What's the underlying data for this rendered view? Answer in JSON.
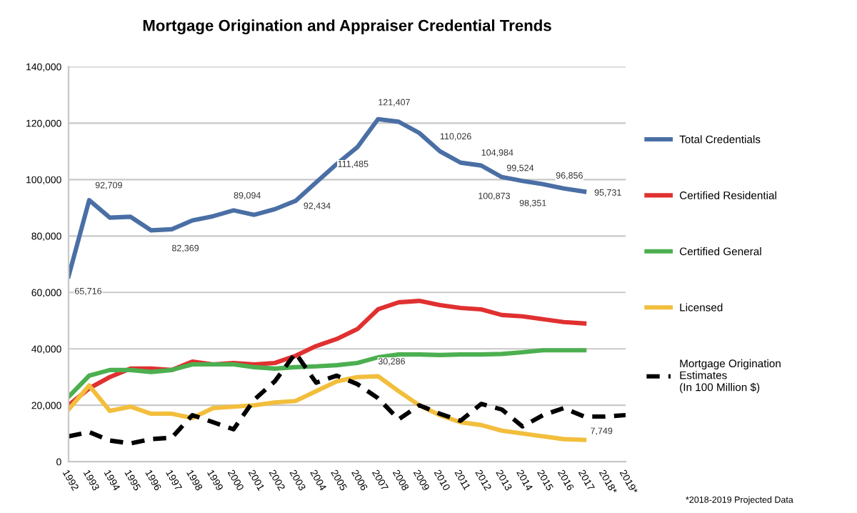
{
  "chart_data": {
    "type": "line",
    "title": "Mortgage Origination and Appraiser Credential Trends",
    "categories": [
      "1992",
      "1993",
      "1994",
      "1995",
      "1996",
      "1997",
      "1998",
      "1999",
      "2000",
      "2001",
      "2002",
      "2003",
      "2004",
      "2005",
      "2006",
      "2007",
      "2008",
      "2009",
      "2010",
      "2011",
      "2012",
      "2013",
      "2014",
      "2015",
      "2016",
      "2017",
      "2018*",
      "2019*"
    ],
    "series": [
      {
        "name": "Total Credentials",
        "color": "#4a6fa5",
        "values": [
          65716,
          92709,
          86500,
          86800,
          82000,
          82369,
          85500,
          87000,
          89094,
          87500,
          89500,
          92434,
          99000,
          105500,
          111485,
          121407,
          120500,
          116500,
          110026,
          106000,
          104984,
          100873,
          99524,
          98351,
          96856,
          95731,
          null,
          null
        ]
      },
      {
        "name": "Certified Residential",
        "color": "#e03030",
        "values": [
          20000,
          26000,
          30000,
          33000,
          33000,
          32500,
          35500,
          34500,
          35000,
          34500,
          35000,
          37500,
          41000,
          43500,
          47000,
          54000,
          56500,
          57000,
          55500,
          54500,
          54000,
          52000,
          51500,
          50500,
          49500,
          49000,
          null,
          null
        ]
      },
      {
        "name": "Certified General",
        "color": "#4caf50",
        "values": [
          23000,
          30500,
          32500,
          32500,
          31800,
          32500,
          34500,
          34500,
          34500,
          33500,
          33000,
          33500,
          33800,
          34200,
          35000,
          37000,
          38000,
          38000,
          37800,
          38000,
          38000,
          38200,
          38800,
          39500,
          39500,
          39500,
          null,
          null
        ]
      },
      {
        "name": "Licensed",
        "color": "#f2be3c",
        "values": [
          18500,
          27000,
          18000,
          19500,
          17000,
          17000,
          15500,
          19000,
          19500,
          20000,
          21000,
          21500,
          25000,
          28500,
          30000,
          30286,
          25000,
          20000,
          16500,
          14000,
          13000,
          11000,
          10000,
          9000,
          8000,
          7749,
          null,
          null
        ]
      },
      {
        "name": "Mortgage Origination\nEstimates\n(In 100 Million $)",
        "color": "#000000",
        "line_style": "dashed",
        "values": [
          9000,
          10500,
          7500,
          6500,
          8000,
          8500,
          16500,
          14000,
          11500,
          22000,
          28500,
          38500,
          28000,
          30500,
          27500,
          22500,
          15000,
          20000,
          17000,
          14500,
          20500,
          18500,
          12500,
          16500,
          19000,
          16000,
          16000,
          16500
        ]
      }
    ],
    "ylim": [
      0,
      140000
    ],
    "yticks": [
      {
        "value": 0,
        "label": "0"
      },
      {
        "value": 20000,
        "label": "20,000"
      },
      {
        "value": 40000,
        "label": "40,000"
      },
      {
        "value": 60000,
        "label": "60,000"
      },
      {
        "value": 80000,
        "label": "80,000"
      },
      {
        "value": 100000,
        "label": "100,000"
      },
      {
        "value": 120000,
        "label": "120,000"
      },
      {
        "value": 140000,
        "label": "140,000"
      }
    ],
    "grid": "y",
    "legend": "right",
    "marker": "none",
    "annotations": [
      {
        "text": "65,716",
        "x": "1992",
        "y": 65716
      },
      {
        "text": "92,709",
        "x": "1993",
        "y": 92709
      },
      {
        "text": "82,369",
        "x": "1997",
        "y": 82369
      },
      {
        "text": "89,094",
        "x": "2000",
        "y": 89094
      },
      {
        "text": "92,434",
        "x": "2003",
        "y": 92434
      },
      {
        "text": "111,485",
        "x": "2006",
        "y": 111485
      },
      {
        "text": "121,407",
        "x": "2007",
        "y": 121407
      },
      {
        "text": "110,026",
        "x": "2010",
        "y": 110026
      },
      {
        "text": "104,984",
        "x": "2012",
        "y": 104984
      },
      {
        "text": "100,873",
        "x": "2013",
        "y": 100873
      },
      {
        "text": "99,524",
        "x": "2014",
        "y": 99524
      },
      {
        "text": "98,351",
        "x": "2015",
        "y": 98351
      },
      {
        "text": "96,856",
        "x": "2016",
        "y": 96856
      },
      {
        "text": "95,731",
        "x": "2017",
        "y": 95731
      },
      {
        "text": "30,286",
        "x": "2007",
        "y": 30286
      },
      {
        "text": "7,749",
        "x": "2017",
        "y": 7749
      },
      "*2018-2019 Projected Data"
    ]
  }
}
